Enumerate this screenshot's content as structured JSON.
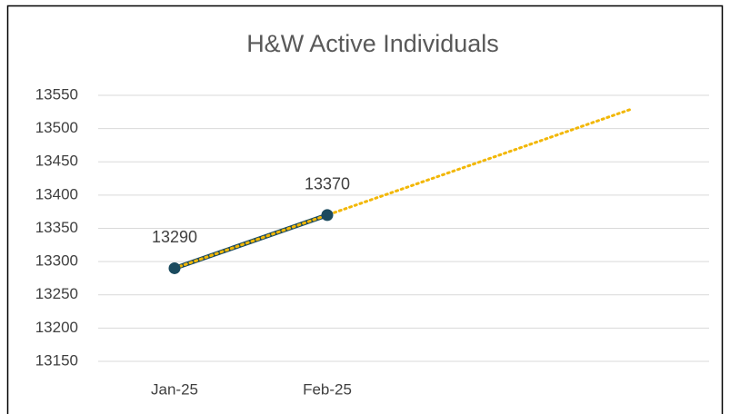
{
  "chart_data": {
    "type": "line",
    "title": "H&W Active Individuals",
    "categories": [
      "Jan-25",
      "Feb-25",
      null,
      null
    ],
    "series": [
      {
        "color": "#1b4a5e",
        "values": [
          13290,
          13370,
          null,
          null
        ]
      }
    ],
    "trendline": {
      "color": "#f2b705",
      "values": [
        13290,
        13370,
        13450,
        13530
      ]
    },
    "ylim": [
      13150,
      13550
    ],
    "yticks": [
      13150,
      13200,
      13250,
      13300,
      13350,
      13400,
      13450,
      13500,
      13550
    ],
    "grid": true,
    "data_labels": true
  }
}
